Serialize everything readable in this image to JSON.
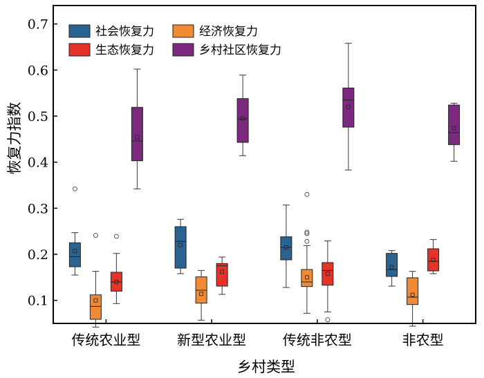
{
  "chart_data": {
    "type": "box",
    "xlabel": "乡村类型",
    "ylabel": "恢复力指数",
    "ylim": [
      0.05,
      0.74
    ],
    "yticks": [
      0.1,
      0.2,
      0.3,
      0.4,
      0.5,
      0.6,
      0.7
    ],
    "grid": false,
    "legend_position": "top-left",
    "categories": [
      "传统农业型",
      "新型农业型",
      "传统非农型",
      "非农型"
    ],
    "series": [
      {
        "name": "社会恢复力",
        "color": "#2a6390",
        "boxes": [
          {
            "min": 0.155,
            "q1": 0.173,
            "median": 0.195,
            "q3": 0.225,
            "max": 0.247,
            "mean": 0.207,
            "outliers": [
              0.342
            ]
          },
          {
            "min": 0.158,
            "q1": 0.17,
            "median": 0.228,
            "q3": 0.26,
            "max": 0.276,
            "mean": 0.22,
            "outliers": []
          },
          {
            "min": 0.128,
            "q1": 0.188,
            "median": 0.215,
            "q3": 0.238,
            "max": 0.307,
            "mean": 0.215,
            "outliers": []
          },
          {
            "min": 0.131,
            "q1": 0.152,
            "median": 0.167,
            "q3": 0.202,
            "max": 0.208,
            "mean": 0.172,
            "outliers": []
          }
        ]
      },
      {
        "name": "经济恢复力",
        "color": "#f08a35",
        "boxes": [
          {
            "min": 0.042,
            "q1": 0.059,
            "median": 0.087,
            "q3": 0.112,
            "max": 0.163,
            "mean": 0.1,
            "outliers": [
              0.241
            ]
          },
          {
            "min": 0.057,
            "q1": 0.094,
            "median": 0.122,
            "q3": 0.151,
            "max": 0.165,
            "mean": 0.114,
            "outliers": []
          },
          {
            "min": 0.072,
            "q1": 0.13,
            "median": 0.14,
            "q3": 0.167,
            "max": 0.219,
            "mean": 0.15,
            "outliers": [
              0.228,
              0.245,
              0.248,
              0.33
            ]
          },
          {
            "min": 0.044,
            "q1": 0.091,
            "median": 0.107,
            "q3": 0.149,
            "max": 0.163,
            "mean": 0.112,
            "outliers": []
          }
        ]
      },
      {
        "name": "生态恢复力",
        "color": "#e5332a",
        "boxes": [
          {
            "min": 0.093,
            "q1": 0.12,
            "median": 0.14,
            "q3": 0.161,
            "max": 0.202,
            "mean": 0.14,
            "outliers": [
              0.239
            ]
          },
          {
            "min": 0.113,
            "q1": 0.131,
            "median": 0.175,
            "q3": 0.18,
            "max": 0.194,
            "mean": 0.162,
            "outliers": []
          },
          {
            "min": 0.075,
            "q1": 0.133,
            "median": 0.165,
            "q3": 0.182,
            "max": 0.229,
            "mean": 0.158,
            "outliers": [
              0.058
            ]
          },
          {
            "min": 0.158,
            "q1": 0.164,
            "median": 0.185,
            "q3": 0.212,
            "max": 0.232,
            "mean": 0.188,
            "outliers": []
          }
        ]
      },
      {
        "name": "乡村社区恢复力",
        "color": "#7b2a7f",
        "boxes": [
          {
            "min": 0.342,
            "q1": 0.403,
            "median": 0.446,
            "q3": 0.519,
            "max": 0.602,
            "mean": 0.454,
            "outliers": []
          },
          {
            "min": 0.414,
            "q1": 0.443,
            "median": 0.494,
            "q3": 0.538,
            "max": 0.589,
            "mean": 0.495,
            "outliers": []
          },
          {
            "min": 0.383,
            "q1": 0.476,
            "median": 0.535,
            "q3": 0.561,
            "max": 0.658,
            "mean": 0.52,
            "outliers": []
          },
          {
            "min": 0.402,
            "q1": 0.438,
            "median": 0.464,
            "q3": 0.524,
            "max": 0.528,
            "mean": 0.474,
            "outliers": []
          }
        ]
      }
    ]
  }
}
